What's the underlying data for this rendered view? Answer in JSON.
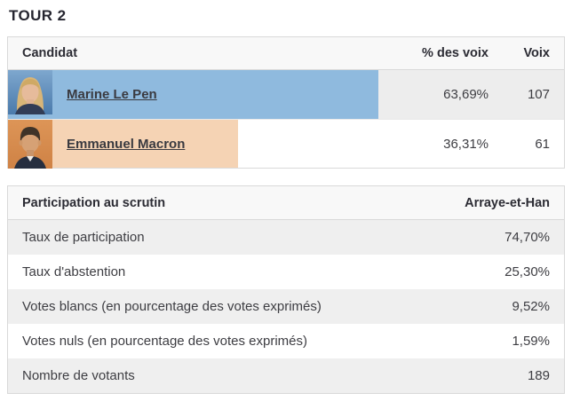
{
  "page": {
    "title": "TOUR 2"
  },
  "colors": {
    "lepen_bar": "#8fbade",
    "macron_bar": "#f5d3b4",
    "row_alt_gray": "#ededed",
    "header_bg": "#f8f8f8",
    "border": "#d9d9d9"
  },
  "results_table": {
    "headers": {
      "candidate": "Candidat",
      "percent": "% des voix",
      "votes": "Voix"
    },
    "rows": [
      {
        "name": "Marine Le Pen",
        "percent": "63,69%",
        "percent_value": 63.69,
        "votes": "107",
        "bar_color": "#8fbade",
        "photo": "marine-le-pen-photo"
      },
      {
        "name": "Emmanuel Macron",
        "percent": "36,31%",
        "percent_value": 36.31,
        "votes": "61",
        "bar_color": "#f5d3b4",
        "photo": "emmanuel-macron-photo"
      }
    ]
  },
  "participation_table": {
    "headers": {
      "left": "Participation au scrutin",
      "right": "Arraye-et-Han"
    },
    "rows": [
      {
        "label": "Taux de participation",
        "value": "74,70%"
      },
      {
        "label": "Taux d'abstention",
        "value": "25,30%"
      },
      {
        "label": "Votes blancs (en pourcentage des votes exprimés)",
        "value": "9,52%"
      },
      {
        "label": "Votes nuls (en pourcentage des votes exprimés)",
        "value": "1,59%"
      },
      {
        "label": "Nombre de votants",
        "value": "189"
      }
    ]
  }
}
